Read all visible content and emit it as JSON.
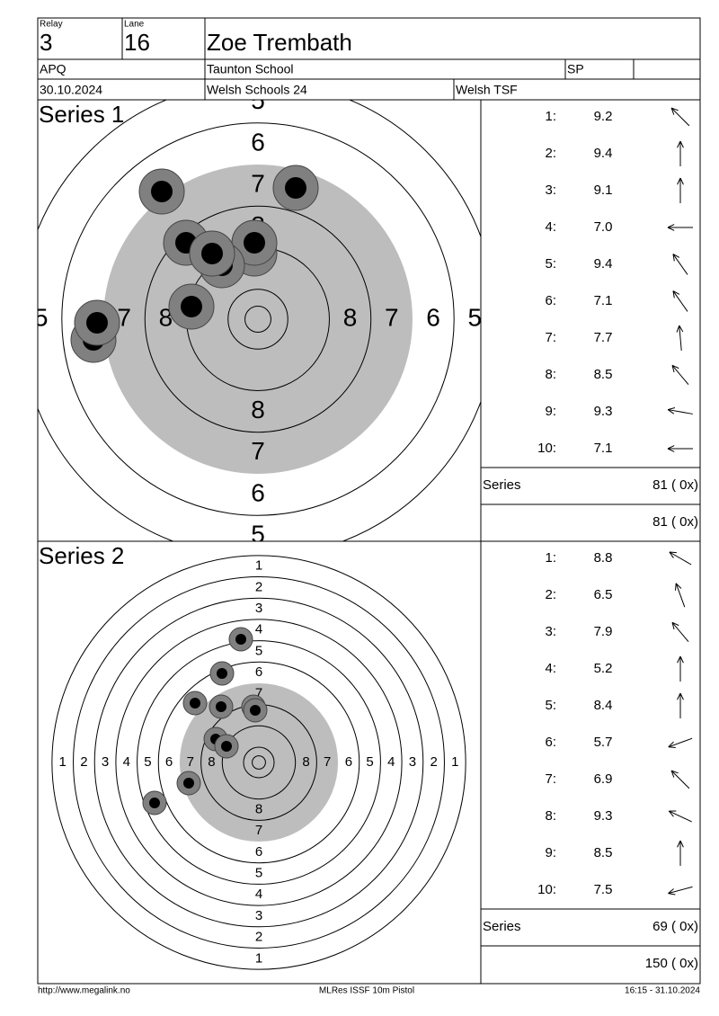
{
  "header": {
    "relay_label": "Relay",
    "relay": "3",
    "lane_label": "Lane",
    "lane": "16",
    "name": "Zoe Trembath",
    "class": "APQ",
    "club": "Taunton School",
    "category": "SP",
    "date": "30.10.2024",
    "event": "Welsh Schools 24",
    "organizer": "Welsh TSF"
  },
  "series": [
    {
      "title": "Series 1",
      "ring_labels": [
        "5",
        "6",
        "7",
        "8"
      ],
      "shots": [
        {
          "number": "1:",
          "score": "9.2"
        },
        {
          "number": "2:",
          "score": "9.4"
        },
        {
          "number": "3:",
          "score": "9.1"
        },
        {
          "number": "4:",
          "score": "7.0"
        },
        {
          "number": "5:",
          "score": "9.4"
        },
        {
          "number": "6:",
          "score": "7.1"
        },
        {
          "number": "7:",
          "score": "7.7"
        },
        {
          "number": "8:",
          "score": "8.5"
        },
        {
          "number": "9:",
          "score": "9.3"
        },
        {
          "number": "10:",
          "score": "7.1"
        }
      ],
      "series_label": "Series",
      "series_total": "81 ( 0x)",
      "cumulative_total": "81 ( 0x)"
    },
    {
      "title": "Series 2",
      "ring_labels": [
        "1",
        "2",
        "3",
        "4",
        "5",
        "6",
        "7",
        "8"
      ],
      "shots": [
        {
          "number": "1:",
          "score": "8.8"
        },
        {
          "number": "2:",
          "score": "6.5"
        },
        {
          "number": "3:",
          "score": "7.9"
        },
        {
          "number": "4:",
          "score": "5.2"
        },
        {
          "number": "5:",
          "score": "8.4"
        },
        {
          "number": "6:",
          "score": "5.7"
        },
        {
          "number": "7:",
          "score": "6.9"
        },
        {
          "number": "8:",
          "score": "9.3"
        },
        {
          "number": "9:",
          "score": "8.5"
        },
        {
          "number": "10:",
          "score": "7.5"
        }
      ],
      "series_label": "Series",
      "series_total": "69 ( 0x)",
      "cumulative_total": "150 ( 0x)"
    }
  ],
  "footer": {
    "website": "http://www.megalink.no",
    "program": "MLRes ISSF 10m Pistol",
    "timestamp": "16:15 - 31.10.2024"
  }
}
